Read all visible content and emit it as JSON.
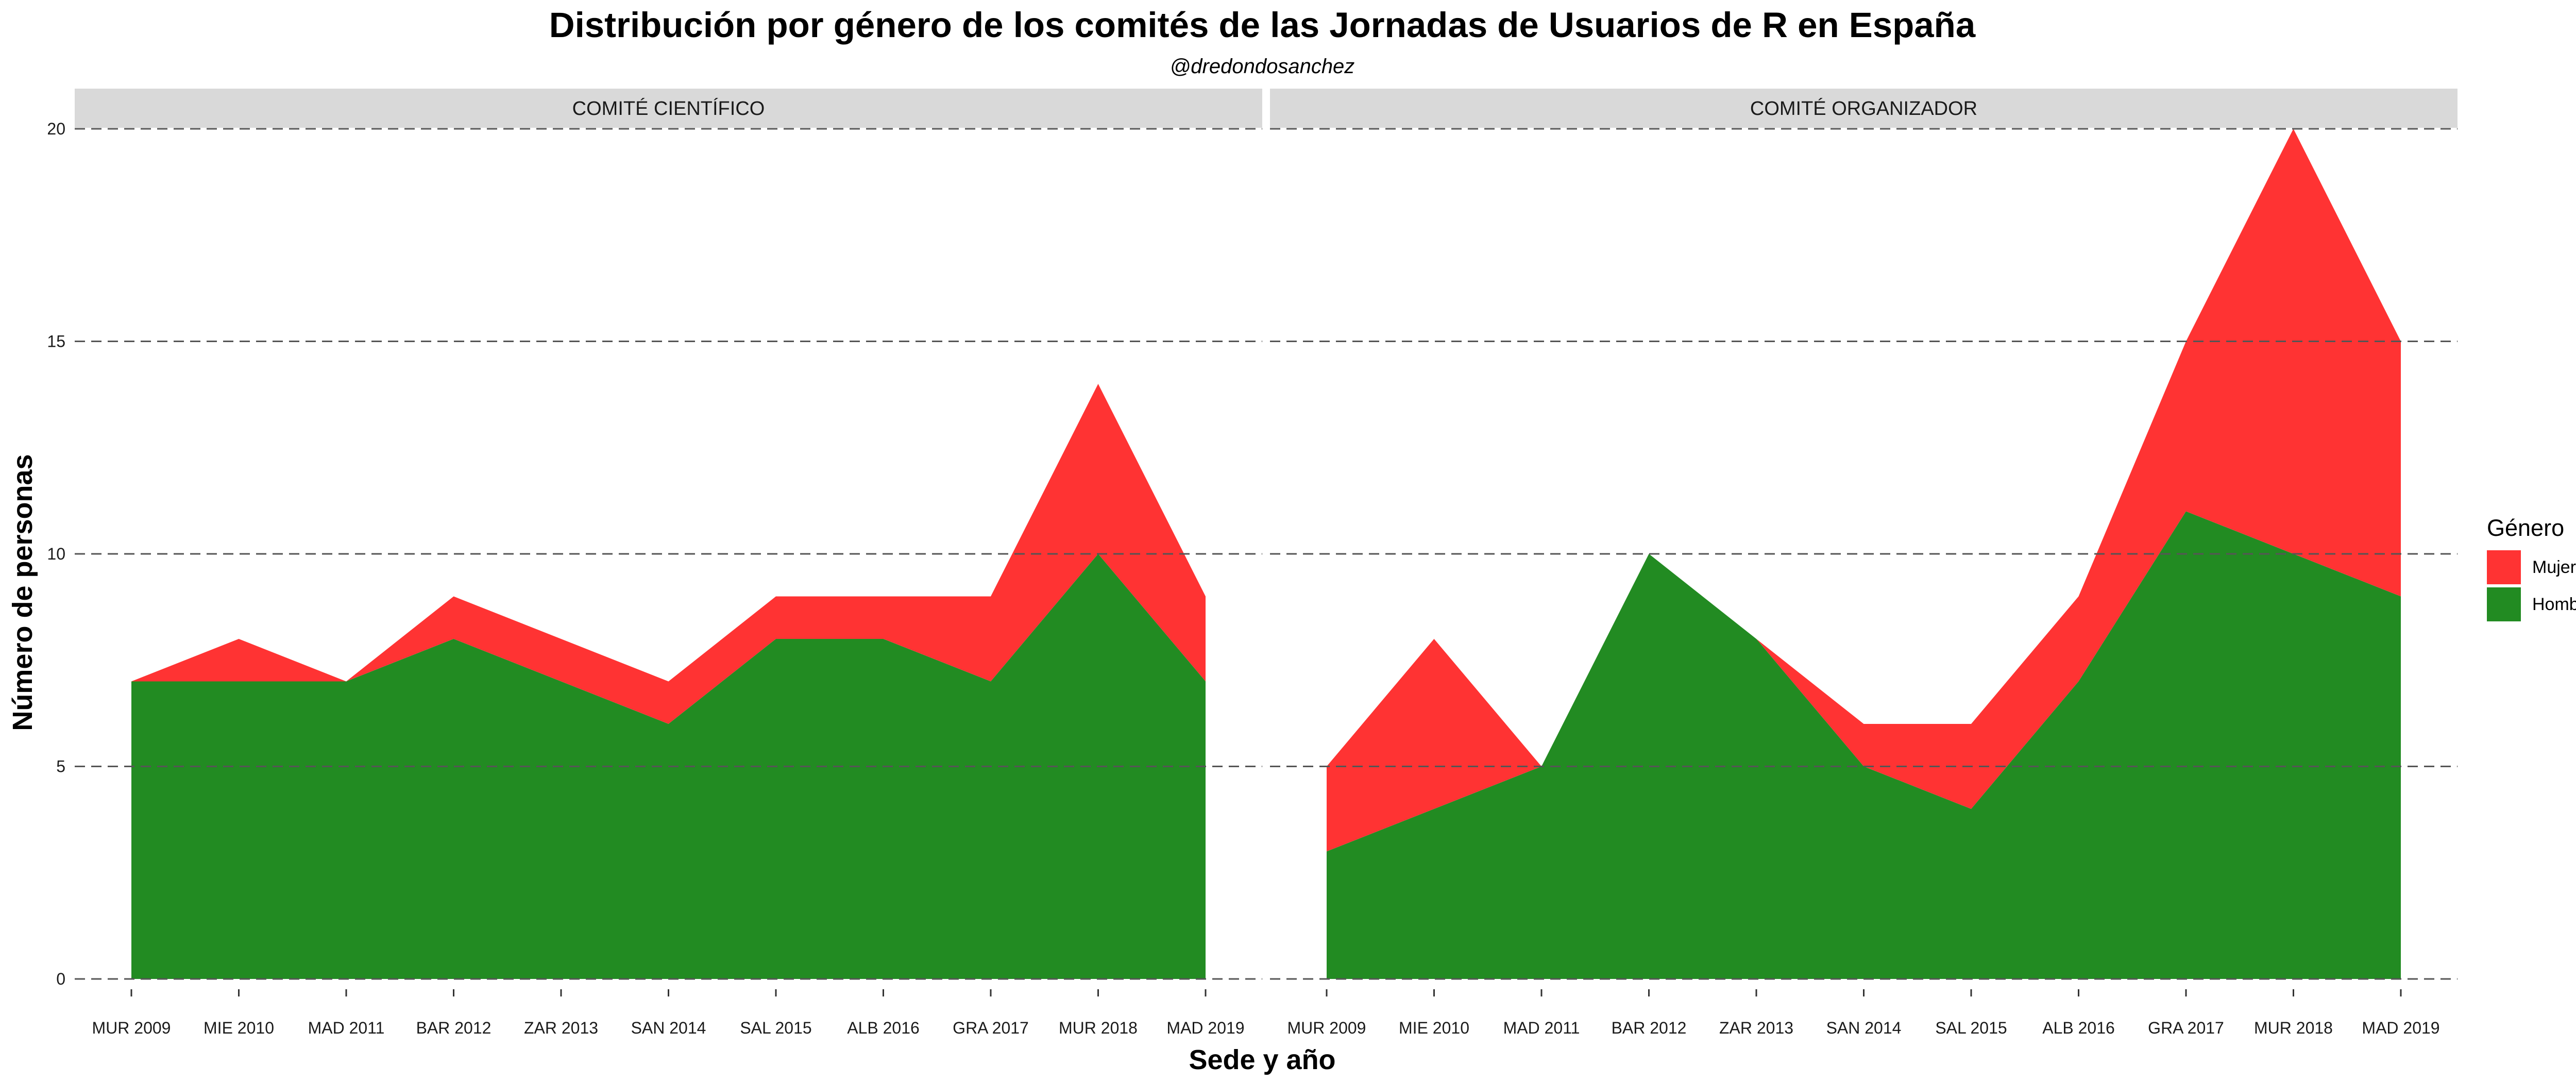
{
  "chart_data": {
    "type": "area",
    "stacked": true,
    "title": "Distribución por género de los comités de las Jornadas de Usuarios de R en España",
    "subtitle": "@dredondosanchez",
    "xlabel": "Sede y año",
    "ylabel": "Número de personas",
    "ylim": [
      0,
      20
    ],
    "yticks": [
      0,
      5,
      10,
      15,
      20
    ],
    "grid": "horizontal dashed",
    "legend": {
      "title": "Género",
      "position": "right",
      "items": [
        {
          "label": "Mujeres",
          "color": "#ff3333"
        },
        {
          "label": "Hombres",
          "color": "#228b22"
        }
      ]
    },
    "categories": [
      "MUR 2009",
      "MIE 2010",
      "MAD 2011",
      "BAR 2012",
      "ZAR 2013",
      "SAN 2014",
      "SAL 2015",
      "ALB 2016",
      "GRA 2017",
      "MUR 2018",
      "MAD 2019"
    ],
    "panels": [
      {
        "strip": "COMITÉ CIENTÍFICO",
        "series": [
          {
            "name": "Hombres",
            "color": "#228b22",
            "values": [
              7,
              7,
              7,
              8,
              7,
              6,
              8,
              8,
              7,
              10,
              7
            ]
          },
          {
            "name": "Mujeres",
            "color": "#ff3333",
            "values": [
              0,
              1,
              0,
              1,
              1,
              1,
              1,
              1,
              2,
              4,
              2
            ]
          }
        ]
      },
      {
        "strip": "COMITÉ ORGANIZADOR",
        "series": [
          {
            "name": "Hombres",
            "color": "#228b22",
            "values": [
              3,
              4,
              5,
              10,
              8,
              5,
              4,
              7,
              11,
              10,
              9
            ]
          },
          {
            "name": "Mujeres",
            "color": "#ff3333",
            "values": [
              2,
              4,
              0,
              0,
              0,
              1,
              2,
              2,
              4,
              10,
              6
            ]
          }
        ]
      }
    ]
  }
}
